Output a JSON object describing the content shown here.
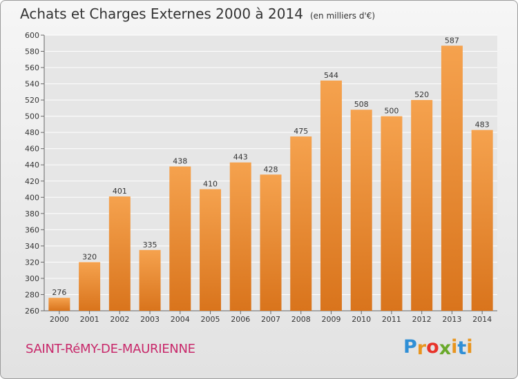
{
  "header": {
    "title": "Achats et Charges Externes 2000 à 2014",
    "subtitle": "(en milliers d'€)"
  },
  "footer": {
    "commune": "SAINT-RéMY-DE-MAURIENNE",
    "logo_letters": [
      "P",
      "r",
      "o",
      "x",
      "i",
      "t",
      "i"
    ],
    "logo_colors": [
      "#2f8fd6",
      "#e8951e",
      "#e8332a",
      "#6aa92b",
      "#e8951e",
      "#2f8fd6",
      "#e8951e"
    ]
  },
  "chart_data": {
    "type": "bar",
    "title": "Achats et Charges Externes 2000 à 2014",
    "subtitle": "(en milliers d'€)",
    "categories": [
      "2000",
      "2001",
      "2002",
      "2003",
      "2004",
      "2005",
      "2006",
      "2007",
      "2008",
      "2009",
      "2010",
      "2011",
      "2012",
      "2013",
      "2014"
    ],
    "values": [
      276,
      320,
      401,
      335,
      438,
      410,
      443,
      428,
      475,
      544,
      508,
      500,
      520,
      587,
      483
    ],
    "ylim": [
      260,
      600
    ],
    "yticks": [
      260,
      280,
      300,
      320,
      340,
      360,
      380,
      400,
      420,
      440,
      460,
      480,
      500,
      520,
      540,
      560,
      580,
      600
    ],
    "grid": true,
    "bar_color_top": "#f5a24e",
    "bar_color_bottom": "#d9741c"
  }
}
